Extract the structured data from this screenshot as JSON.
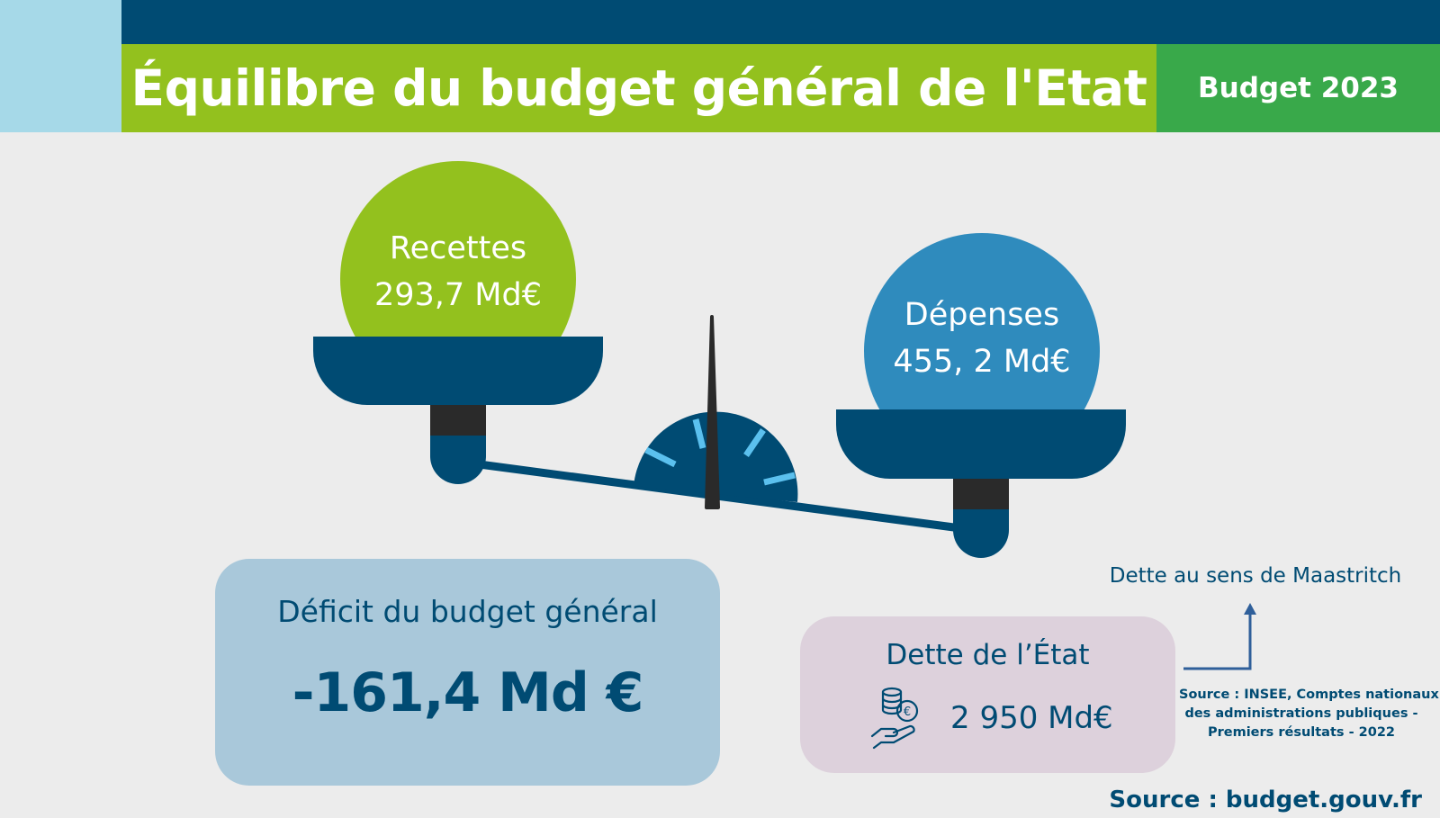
{
  "header": {
    "title": "Équilibre du budget général de l'Etat",
    "badge": "Budget 2023"
  },
  "scale": {
    "recettes": {
      "label": "Recettes",
      "value": "293,7 Md€"
    },
    "depenses": {
      "label": "Dépenses",
      "value": "455, 2 Md€"
    }
  },
  "deficit": {
    "label": "Déficit du budget général",
    "value": "-161,4 Md €"
  },
  "dette": {
    "label": "Dette de l’État",
    "value": "2 950 Md€",
    "icon": "coins-hand-icon"
  },
  "maastricht": {
    "label": "Dette au sens de Maastritch",
    "source_lines": [
      "Source : INSEE, Comptes nationaux",
      "des administrations publiques -",
      "Premiers résultats - 2022"
    ]
  },
  "footer": {
    "source": "Source : budget.gouv.fr"
  },
  "colors": {
    "navy": "#004b73",
    "lime": "#93c11e",
    "green": "#39a94a",
    "light_blue": "#a6d9e8",
    "ball_blue": "#2f8bbd",
    "tick_blue": "#5bc0ee"
  }
}
